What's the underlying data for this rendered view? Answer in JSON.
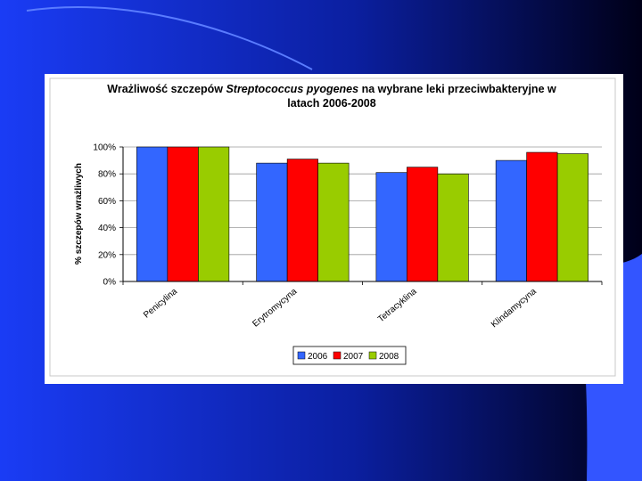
{
  "chart_data": {
    "type": "bar",
    "title_parts": {
      "prefix": "Wrażliwość szczepów ",
      "species": "Streptococcus pyogenes",
      "suffix": " na wybrane leki przeciwbakteryjne w",
      "line2": "latach 2006-2008"
    },
    "ylabel": "% szczepów wrażliwych",
    "categories": [
      "Penicylina",
      "Erytromycyna",
      "Tetracyklina",
      "Klindamycyna"
    ],
    "series": [
      {
        "name": "2006",
        "color": "#3366ff",
        "values": [
          100,
          88,
          81,
          90
        ]
      },
      {
        "name": "2007",
        "color": "#ff0000",
        "values": [
          100,
          91,
          85,
          96
        ]
      },
      {
        "name": "2008",
        "color": "#99cc00",
        "values": [
          100,
          88,
          80,
          95
        ]
      }
    ],
    "ylim": [
      0,
      100
    ],
    "yticks": [
      "0%",
      "20%",
      "40%",
      "60%",
      "80%",
      "100%"
    ],
    "grid": true,
    "legend_position": "bottom"
  }
}
